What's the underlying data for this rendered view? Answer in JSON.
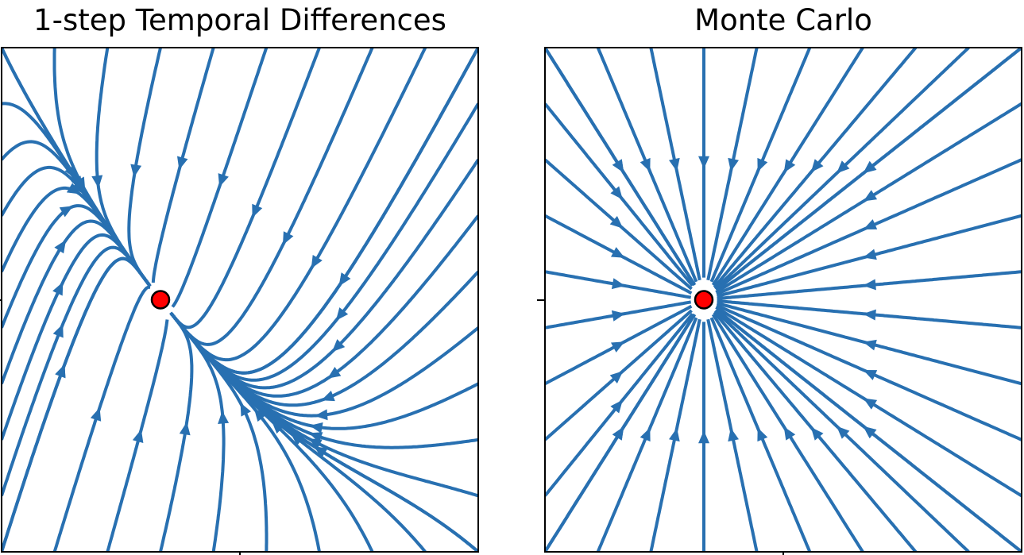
{
  "chart_data": [
    {
      "type": "streamplot",
      "title": "1-step Temporal Differences",
      "line_color": "#2870b1",
      "fixed_point": {
        "x": 0,
        "y": 0
      },
      "fixed_point_color": "#ff0000",
      "field": "td",
      "xlim": [
        -1,
        2
      ],
      "ylim": [
        -1,
        1
      ]
    },
    {
      "type": "streamplot",
      "title": "Monte Carlo",
      "line_color": "#2870b1",
      "fixed_point": {
        "x": 0,
        "y": 0
      },
      "fixed_point_color": "#ff0000",
      "field": "mc",
      "xlim": [
        -1,
        2
      ],
      "ylim": [
        -1,
        1
      ]
    }
  ]
}
